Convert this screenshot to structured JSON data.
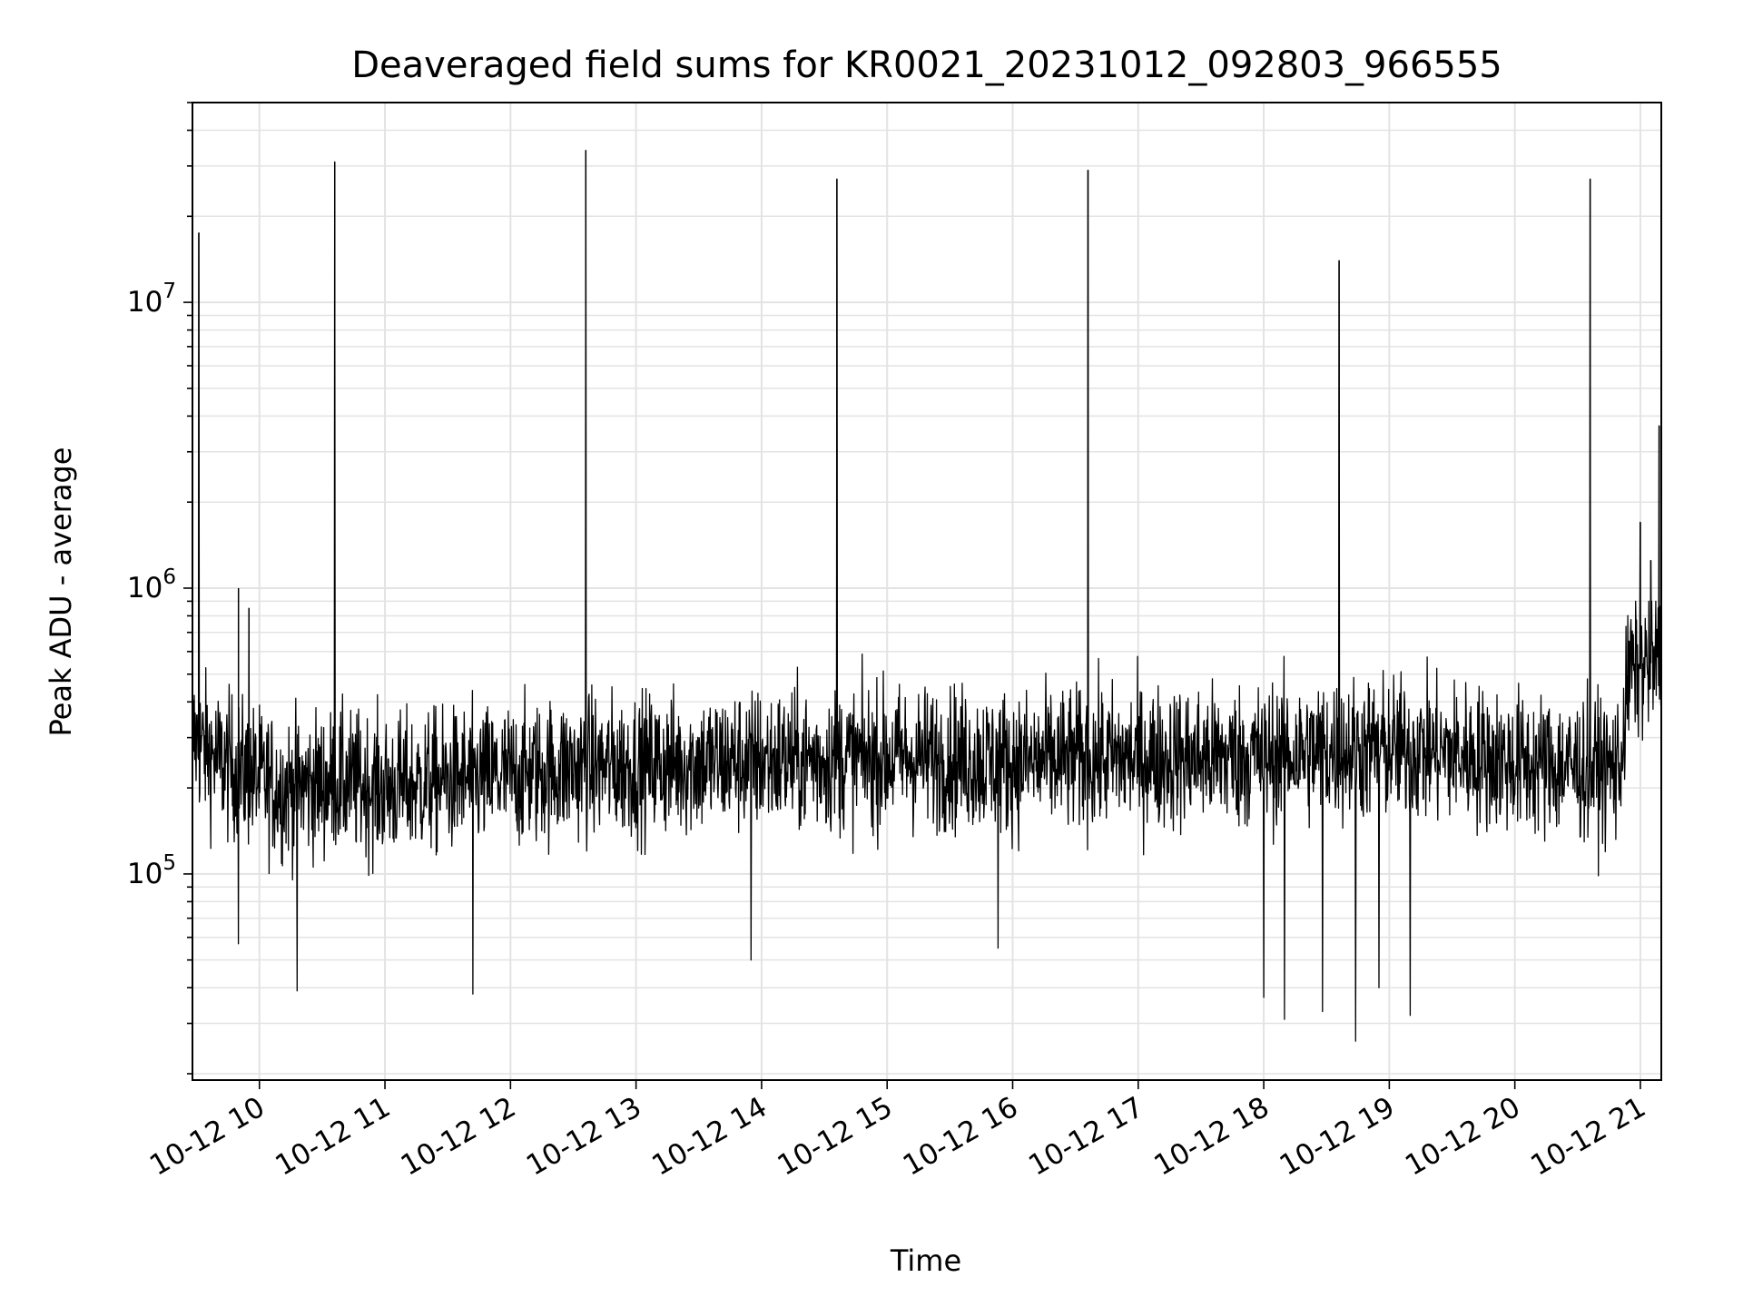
{
  "chart_data": {
    "type": "line",
    "title": "Deaveraged field sums for KR0021_20231012_092803_966555",
    "xlabel": "Time",
    "ylabel": "Peak ADU - average",
    "x_scale": "time",
    "y_scale": "log",
    "xlim": [
      "2023-10-12 09:28",
      "2023-10-12 21:10"
    ],
    "ylim": [
      19000,
      50000000
    ],
    "grid": true,
    "x_ticks": [
      "10-12 10",
      "10-12 11",
      "10-12 12",
      "10-12 13",
      "10-12 14",
      "10-12 15",
      "10-12 16",
      "10-12 17",
      "10-12 18",
      "10-12 19",
      "10-12 20",
      "10-12 21"
    ],
    "y_ticks": [
      {
        "value": 100000,
        "base": "10",
        "exp": "5"
      },
      {
        "value": 1000000,
        "base": "10",
        "exp": "6"
      },
      {
        "value": 10000000,
        "base": "10",
        "exp": "7"
      }
    ],
    "series": [
      {
        "color": "#000000",
        "baseline": [
          [
            "09:28",
            300000
          ],
          [
            "09:40",
            250000
          ],
          [
            "09:50",
            230000
          ],
          [
            "10:10",
            200000
          ],
          [
            "10:40",
            210000
          ],
          [
            "11:00",
            200000
          ],
          [
            "11:40",
            215000
          ],
          [
            "12:00",
            220000
          ],
          [
            "12:30",
            235000
          ],
          [
            "13:00",
            240000
          ],
          [
            "13:30",
            245000
          ],
          [
            "14:00",
            250000
          ],
          [
            "14:30",
            250000
          ],
          [
            "15:00",
            255000
          ],
          [
            "15:30",
            255000
          ],
          [
            "16:00",
            245000
          ],
          [
            "16:30",
            250000
          ],
          [
            "17:00",
            255000
          ],
          [
            "17:30",
            255000
          ],
          [
            "18:00",
            260000
          ],
          [
            "18:30",
            270000
          ],
          [
            "19:00",
            275000
          ],
          [
            "19:30",
            265000
          ],
          [
            "20:00",
            245000
          ],
          [
            "20:30",
            235000
          ],
          [
            "20:50",
            235000
          ],
          [
            "20:55",
            520000
          ],
          [
            "21:10",
            560000
          ]
        ],
        "events": [
          [
            "09:31",
            17500000
          ],
          [
            "09:50",
            1000000
          ],
          [
            "09:55",
            850000
          ],
          [
            "10:36",
            31000000
          ],
          [
            "12:36",
            34000000
          ],
          [
            "14:36",
            27000000
          ],
          [
            "16:36",
            29000000
          ],
          [
            "18:36",
            14000000
          ],
          [
            "20:36",
            27000000
          ],
          [
            "21:00",
            1700000
          ],
          [
            "21:05",
            1250000
          ],
          [
            "21:09",
            3700000
          ]
        ],
        "minima": [
          [
            "09:50",
            57000
          ],
          [
            "10:18",
            39000
          ],
          [
            "11:42",
            38000
          ],
          [
            "13:55",
            50000
          ],
          [
            "15:53",
            55000
          ],
          [
            "18:00",
            37000
          ],
          [
            "18:10",
            31000
          ],
          [
            "18:28",
            33000
          ],
          [
            "18:44",
            26000
          ],
          [
            "18:55",
            40000
          ],
          [
            "19:10",
            32000
          ]
        ]
      }
    ]
  }
}
